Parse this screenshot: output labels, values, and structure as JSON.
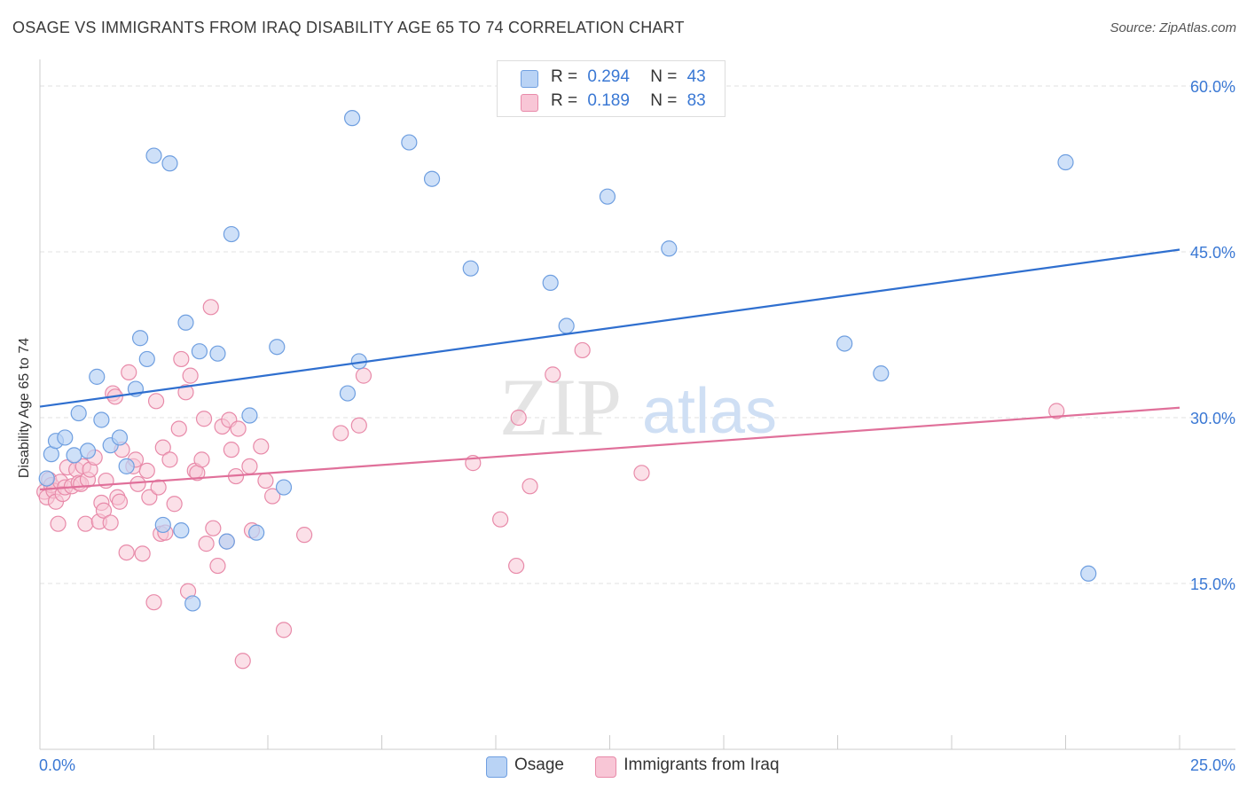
{
  "title": "OSAGE VS IMMIGRANTS FROM IRAQ DISABILITY AGE 65 TO 74 CORRELATION CHART",
  "source": "Source: ZipAtlas.com",
  "watermark": {
    "zip": "ZIP",
    "atlas": "atlas"
  },
  "legend_top": [
    {
      "r_label": "R =",
      "r_value": "0.294",
      "n_label": "N =",
      "n_value": "43"
    },
    {
      "r_label": "R =",
      "r_value": "0.189",
      "n_label": "N =",
      "n_value": "83"
    }
  ],
  "legend_bottom": [
    "Osage",
    "Immigrants from Iraq"
  ],
  "colors": {
    "osage_fill": "#b9d3f5",
    "osage_stroke": "#6f9fe0",
    "osage_line": "#2f6fcf",
    "iraq_fill": "#f8c6d6",
    "iraq_stroke": "#e88aa9",
    "iraq_line": "#e0709a",
    "axis_label": "#3a78d4",
    "grid": "#e2e2e2"
  },
  "chart_data": {
    "type": "scatter",
    "title": "OSAGE VS IMMIGRANTS FROM IRAQ DISABILITY AGE 65 TO 74 CORRELATION CHART",
    "xlabel": "",
    "ylabel": "Disability Age 65 to 74",
    "xlim": [
      0,
      25
    ],
    "ylim": [
      0,
      60
    ],
    "x_tick_labels": [
      "0.0%",
      "25.0%"
    ],
    "y_ticks": [
      15,
      30,
      45,
      60
    ],
    "y_tick_labels": [
      "15.0%",
      "30.0%",
      "45.0%",
      "60.0%"
    ],
    "grid": true,
    "legend_position": "top-center",
    "series": [
      {
        "name": "Osage",
        "r": 0.294,
        "n": 43,
        "trend": {
          "x": [
            0,
            25
          ],
          "y": [
            31.0,
            45.2
          ]
        },
        "points": [
          [
            0.15,
            24.5
          ],
          [
            0.25,
            26.7
          ],
          [
            0.35,
            27.9
          ],
          [
            0.55,
            28.2
          ],
          [
            0.75,
            26.6
          ],
          [
            0.85,
            30.4
          ],
          [
            1.05,
            27.0
          ],
          [
            1.25,
            33.7
          ],
          [
            1.35,
            29.8
          ],
          [
            1.55,
            27.5
          ],
          [
            1.75,
            28.2
          ],
          [
            1.9,
            25.6
          ],
          [
            2.1,
            32.6
          ],
          [
            2.2,
            37.2
          ],
          [
            2.35,
            35.3
          ],
          [
            2.5,
            53.7
          ],
          [
            2.7,
            20.3
          ],
          [
            2.85,
            53.0
          ],
          [
            3.1,
            19.8
          ],
          [
            3.2,
            38.6
          ],
          [
            3.35,
            13.2
          ],
          [
            3.5,
            36.0
          ],
          [
            3.9,
            35.8
          ],
          [
            4.1,
            18.8
          ],
          [
            4.2,
            46.6
          ],
          [
            4.6,
            30.2
          ],
          [
            4.75,
            19.6
          ],
          [
            5.2,
            36.4
          ],
          [
            5.35,
            23.7
          ],
          [
            6.75,
            32.2
          ],
          [
            6.85,
            57.1
          ],
          [
            7.0,
            35.1
          ],
          [
            8.1,
            54.9
          ],
          [
            8.6,
            51.6
          ],
          [
            9.45,
            43.5
          ],
          [
            11.2,
            42.2
          ],
          [
            11.55,
            38.3
          ],
          [
            12.45,
            50.0
          ],
          [
            13.8,
            45.3
          ],
          [
            17.65,
            36.7
          ],
          [
            18.45,
            34.0
          ],
          [
            22.5,
            53.1
          ],
          [
            23.0,
            15.9
          ]
        ]
      },
      {
        "name": "Immigrants from Iraq",
        "r": 0.189,
        "n": 83,
        "trend": {
          "x": [
            0,
            25
          ],
          "y": [
            23.5,
            30.9
          ]
        },
        "points": [
          [
            0.1,
            23.3
          ],
          [
            0.15,
            22.8
          ],
          [
            0.2,
            24.4
          ],
          [
            0.25,
            23.9
          ],
          [
            0.3,
            23.4
          ],
          [
            0.35,
            22.4
          ],
          [
            0.4,
            20.4
          ],
          [
            0.45,
            24.2
          ],
          [
            0.5,
            23.1
          ],
          [
            0.55,
            23.7
          ],
          [
            0.6,
            25.5
          ],
          [
            0.7,
            23.8
          ],
          [
            0.8,
            25.3
          ],
          [
            0.85,
            24.1
          ],
          [
            0.9,
            24.0
          ],
          [
            0.95,
            25.6
          ],
          [
            1.0,
            20.4
          ],
          [
            1.05,
            24.4
          ],
          [
            1.1,
            25.3
          ],
          [
            1.2,
            26.4
          ],
          [
            1.3,
            20.6
          ],
          [
            1.35,
            22.3
          ],
          [
            1.4,
            21.6
          ],
          [
            1.45,
            24.3
          ],
          [
            1.55,
            20.5
          ],
          [
            1.6,
            32.2
          ],
          [
            1.65,
            31.9
          ],
          [
            1.7,
            22.8
          ],
          [
            1.75,
            22.4
          ],
          [
            1.8,
            27.1
          ],
          [
            1.9,
            17.8
          ],
          [
            1.95,
            34.1
          ],
          [
            2.05,
            25.6
          ],
          [
            2.1,
            26.2
          ],
          [
            2.15,
            24.0
          ],
          [
            2.25,
            17.7
          ],
          [
            2.35,
            25.2
          ],
          [
            2.4,
            22.8
          ],
          [
            2.5,
            13.3
          ],
          [
            2.55,
            31.5
          ],
          [
            2.6,
            23.7
          ],
          [
            2.65,
            19.5
          ],
          [
            2.7,
            27.3
          ],
          [
            2.75,
            19.6
          ],
          [
            2.85,
            26.2
          ],
          [
            2.95,
            22.2
          ],
          [
            3.05,
            29.0
          ],
          [
            3.1,
            35.3
          ],
          [
            3.2,
            32.3
          ],
          [
            3.25,
            14.3
          ],
          [
            3.3,
            33.8
          ],
          [
            3.4,
            25.2
          ],
          [
            3.45,
            25.0
          ],
          [
            3.55,
            26.2
          ],
          [
            3.6,
            29.9
          ],
          [
            3.65,
            18.6
          ],
          [
            3.75,
            40.0
          ],
          [
            3.8,
            20.0
          ],
          [
            3.9,
            16.6
          ],
          [
            4.0,
            29.2
          ],
          [
            4.1,
            18.8
          ],
          [
            4.15,
            29.8
          ],
          [
            4.2,
            27.1
          ],
          [
            4.3,
            24.7
          ],
          [
            4.35,
            29.0
          ],
          [
            4.45,
            8.0
          ],
          [
            4.6,
            25.6
          ],
          [
            4.65,
            19.8
          ],
          [
            4.85,
            27.4
          ],
          [
            4.95,
            24.3
          ],
          [
            5.1,
            22.9
          ],
          [
            5.35,
            10.8
          ],
          [
            5.8,
            19.4
          ],
          [
            6.6,
            28.6
          ],
          [
            7.0,
            29.3
          ],
          [
            7.1,
            33.8
          ],
          [
            9.5,
            25.9
          ],
          [
            10.1,
            20.8
          ],
          [
            10.45,
            16.6
          ],
          [
            10.5,
            30.0
          ],
          [
            10.75,
            23.8
          ],
          [
            11.25,
            33.9
          ],
          [
            11.9,
            36.1
          ],
          [
            13.2,
            25.0
          ],
          [
            22.3,
            30.6
          ]
        ]
      }
    ]
  }
}
